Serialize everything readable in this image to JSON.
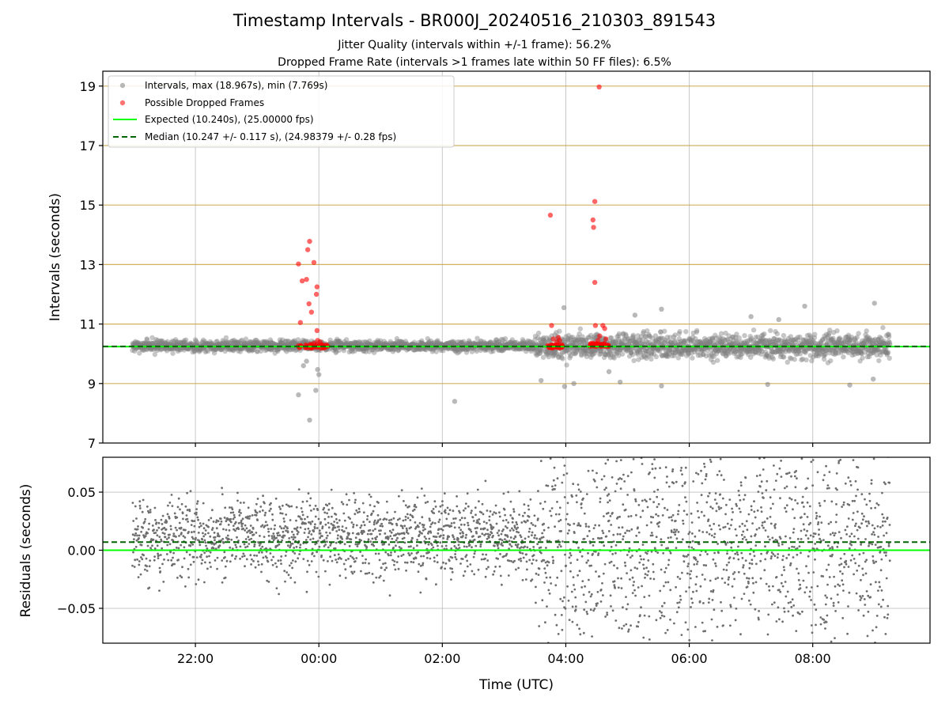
{
  "chart_data": [
    {
      "type": "scatter",
      "title": "Timestamp Intervals - BR000J_20240516_210303_891543",
      "subtitle_lines": [
        "Jitter Quality (intervals within +/-1 frame): 56.2%",
        "Dropped Frame Rate (intervals >1 frames late within 50 FF files): 6.5%"
      ],
      "xlabel": "",
      "ylabel": "Intervals (seconds)",
      "x_axis": "time_utc_hours",
      "xlim": [
        -3.5,
        9.9
      ],
      "ylim": [
        7,
        19.5
      ],
      "yticks": [
        7,
        9,
        11,
        13,
        15,
        17,
        19
      ],
      "ytick_labels": [
        "7",
        "9",
        "11",
        "13",
        "15",
        "17",
        "19"
      ],
      "xticks": [
        -2,
        0,
        2,
        4,
        6,
        8
      ],
      "grid": true,
      "hlines_gold": [
        9,
        11,
        13,
        15,
        17,
        19
      ],
      "colors": {
        "intervals": "#808080",
        "dropped": "#ff0000",
        "expected": "#00ff00",
        "median": "#006400",
        "gold_line": "#c8a24a",
        "grid": "#b0b0b0"
      },
      "legend_position": "upper-left",
      "legend": [
        {
          "label": "Intervals, max (18.967s), min (7.769s)",
          "marker": "circle",
          "color": "#808080"
        },
        {
          "label": "Possible Dropped Frames",
          "marker": "circle",
          "color": "#ff0000"
        },
        {
          "label": "Expected (10.240s), (25.00000 fps)",
          "marker": "solid-line",
          "color": "#00ff00"
        },
        {
          "label": "Median (10.247 +/- 0.117 s), (24.98379 +/- 0.28 fps)",
          "marker": "dashed-line",
          "color": "#006400"
        }
      ],
      "expected": 10.24,
      "median": 10.247,
      "interval_stats": {
        "max": 18.967,
        "min": 7.769
      },
      "series": [
        {
          "name": "Intervals, max (18.967s), min (7.769s)",
          "description": "approx. 2900 interval points between 21:00 and 09:15 UTC, mostly 10.0-10.5 s with wider spread after 03:30",
          "outliers": [
            {
              "x": -0.33,
              "y": 8.62
            },
            {
              "x": -0.15,
              "y": 7.77
            },
            {
              "x": -0.05,
              "y": 8.77
            },
            {
              "x": 0.0,
              "y": 9.3
            },
            {
              "x": -0.02,
              "y": 9.47
            },
            {
              "x": -0.25,
              "y": 9.6
            },
            {
              "x": -0.2,
              "y": 9.75
            },
            {
              "x": 3.97,
              "y": 11.55
            },
            {
              "x": 3.98,
              "y": 8.9
            },
            {
              "x": 4.13,
              "y": 9.0
            },
            {
              "x": 4.7,
              "y": 9.4
            },
            {
              "x": 4.88,
              "y": 9.05
            },
            {
              "x": 5.12,
              "y": 11.3
            },
            {
              "x": 5.55,
              "y": 11.5
            },
            {
              "x": 5.55,
              "y": 8.92
            },
            {
              "x": 7.27,
              "y": 8.97
            },
            {
              "x": 7.45,
              "y": 11.15
            },
            {
              "x": 7.87,
              "y": 11.6
            },
            {
              "x": 8.6,
              "y": 8.95
            },
            {
              "x": 8.98,
              "y": 9.15
            },
            {
              "x": 9.0,
              "y": 11.7
            },
            {
              "x": 2.2,
              "y": 8.4
            },
            {
              "x": 7.0,
              "y": 11.25
            },
            {
              "x": 3.6,
              "y": 9.1
            }
          ]
        },
        {
          "name": "Possible Dropped Frames",
          "values": [
            {
              "x": -0.33,
              "y": 13.02
            },
            {
              "x": -0.18,
              "y": 13.5
            },
            {
              "x": -0.15,
              "y": 13.78
            },
            {
              "x": -0.08,
              "y": 13.07
            },
            {
              "x": -0.27,
              "y": 12.45
            },
            {
              "x": -0.2,
              "y": 12.5
            },
            {
              "x": -0.03,
              "y": 12.25
            },
            {
              "x": -0.04,
              "y": 12.0
            },
            {
              "x": -0.16,
              "y": 11.68
            },
            {
              "x": -0.12,
              "y": 11.4
            },
            {
              "x": -0.3,
              "y": 11.05
            },
            {
              "x": -0.03,
              "y": 10.78
            },
            {
              "x": -0.02,
              "y": 10.45
            },
            {
              "x": 0.02,
              "y": 10.4
            },
            {
              "x": -0.08,
              "y": 10.35
            },
            {
              "x": 3.75,
              "y": 14.66
            },
            {
              "x": 3.77,
              "y": 10.95
            },
            {
              "x": 3.8,
              "y": 10.5
            },
            {
              "x": 3.85,
              "y": 10.4
            },
            {
              "x": 3.9,
              "y": 10.45
            },
            {
              "x": 3.88,
              "y": 10.55
            },
            {
              "x": 4.47,
              "y": 15.12
            },
            {
              "x": 4.44,
              "y": 14.5
            },
            {
              "x": 4.45,
              "y": 14.25
            },
            {
              "x": 4.47,
              "y": 12.4
            },
            {
              "x": 4.54,
              "y": 18.97
            },
            {
              "x": 4.48,
              "y": 10.95
            },
            {
              "x": 4.6,
              "y": 10.95
            },
            {
              "x": 4.63,
              "y": 10.85
            },
            {
              "x": 4.55,
              "y": 10.6
            },
            {
              "x": 4.65,
              "y": 10.5
            },
            {
              "x": 4.52,
              "y": 10.45
            }
          ],
          "clusters": [
            {
              "x_from": -0.35,
              "x_to": 0.15,
              "y": 10.25
            },
            {
              "x_from": 3.7,
              "x_to": 3.95,
              "y": 10.25
            },
            {
              "x_from": 4.4,
              "x_to": 4.7,
              "y": 10.3
            }
          ]
        }
      ]
    },
    {
      "type": "scatter",
      "title": "",
      "xlabel": "Time (UTC)",
      "ylabel": "Residuals (seconds)",
      "x_axis": "time_utc_hours",
      "xlim": [
        -3.5,
        9.9
      ],
      "ylim": [
        -0.08,
        0.08
      ],
      "yticks": [
        -0.05,
        0.0,
        0.05
      ],
      "ytick_labels": [
        "−0.05",
        "0.00",
        "0.05"
      ],
      "xticks": [
        -2,
        0,
        2,
        4,
        6,
        8
      ],
      "xtick_labels": [
        "22:00",
        "00:00",
        "02:00",
        "04:00",
        "06:00",
        "08:00"
      ],
      "grid": true,
      "expected_line": 0.0,
      "median_line": 0.007,
      "colors": {
        "points": "#6e6e6e",
        "expected": "#00ff00",
        "median": "#006400"
      },
      "series": [
        {
          "name": "",
          "description": "approx. 2900 residual points (interval minus expected), clipped to +/-0.08 s; dense band 0 to 0.03 s before 03:30, broad scatter afterwards"
        }
      ]
    }
  ]
}
